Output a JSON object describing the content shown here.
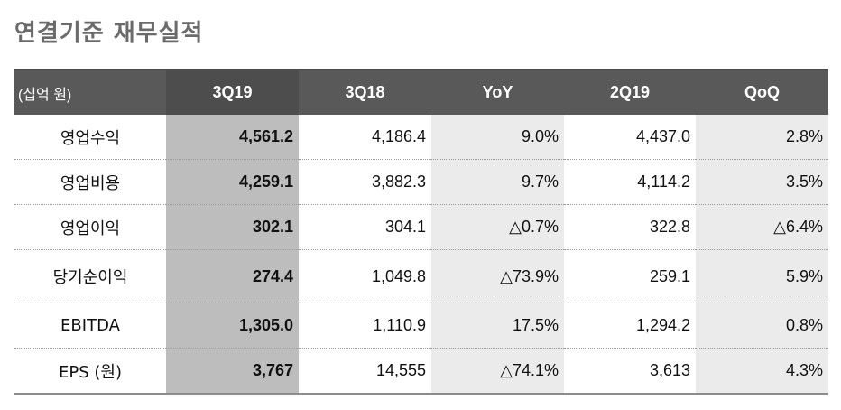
{
  "title": "연결기준 재무실적",
  "table": {
    "unit_label": "(십억 원)",
    "columns": [
      "3Q19",
      "3Q18",
      "YoY",
      "2Q19",
      "QoQ"
    ],
    "rows": [
      {
        "label": "영업수익",
        "values": [
          "4,561.2",
          "4,186.4",
          "9.0%",
          "4,437.0",
          "2.8%"
        ]
      },
      {
        "label": "영업비용",
        "values": [
          "4,259.1",
          "3,882.3",
          "9.7%",
          "4,114.2",
          "3.5%"
        ]
      },
      {
        "label": "영업이익",
        "values": [
          "302.1",
          "304.1",
          "△0.7%",
          "322.8",
          "△6.4%"
        ]
      },
      {
        "label": "당기순이익",
        "values": [
          "274.4",
          "1,049.8",
          "△73.9%",
          "259.1",
          "5.9%"
        ]
      },
      {
        "label": "EBITDA",
        "values": [
          "1,305.0",
          "1,110.9",
          "17.5%",
          "1,294.2",
          "0.8%"
        ]
      },
      {
        "label": "EPS (원)",
        "values": [
          "3,767",
          "14,555",
          "△74.1%",
          "3,613",
          "4.3%"
        ]
      }
    ]
  },
  "colors": {
    "header_bg": "#595959",
    "highlight_column": "#bdbdbd",
    "shaded_columns": "#ebebeb",
    "title": "#6b6b6b"
  }
}
